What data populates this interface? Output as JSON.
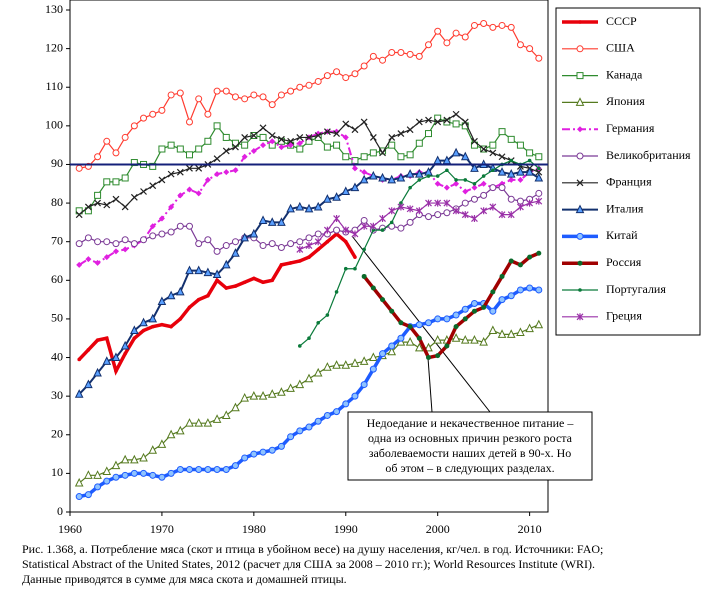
{
  "chart_data": {
    "type": "line",
    "x": [
      1961,
      1962,
      1963,
      1964,
      1965,
      1966,
      1967,
      1968,
      1969,
      1970,
      1971,
      1972,
      1973,
      1974,
      1975,
      1976,
      1977,
      1978,
      1979,
      1980,
      1981,
      1982,
      1983,
      1984,
      1985,
      1986,
      1987,
      1988,
      1989,
      1990,
      1991,
      1992,
      1993,
      1994,
      1995,
      1996,
      1997,
      1998,
      1999,
      2000,
      2001,
      2002,
      2003,
      2004,
      2005,
      2006,
      2007,
      2008,
      2009,
      2010,
      2011
    ],
    "xlim": [
      1960,
      2012
    ],
    "xticks": [
      1960,
      1970,
      1980,
      1990,
      2000,
      2010
    ],
    "ylim": [
      0,
      130
    ],
    "yticks": [
      0,
      10,
      20,
      30,
      40,
      50,
      60,
      70,
      80,
      90,
      100,
      110,
      120,
      130
    ],
    "reference_line": {
      "value": 90,
      "color": "#14207a"
    },
    "series": [
      {
        "name": "СССР",
        "color": "#e8000b",
        "width": 3.5,
        "marker": "dot",
        "values": [
          39.5,
          42,
          44.5,
          45,
          36.5,
          41,
          45,
          47,
          48,
          48.5,
          48,
          50,
          53,
          55,
          56,
          60,
          58,
          58.5,
          59.5,
          60.5,
          59.5,
          60,
          64,
          64.5,
          65,
          66,
          68,
          70,
          72,
          70,
          66,
          null,
          null,
          null,
          null,
          null,
          null,
          null,
          null,
          null,
          null,
          null,
          null,
          null,
          null,
          null,
          null,
          null,
          null,
          null,
          null
        ]
      },
      {
        "name": "США",
        "color": "#ff3b2f",
        "width": 1.2,
        "marker": "circle",
        "values": [
          89,
          89.5,
          92,
          96,
          93,
          97,
          100,
          102,
          103,
          104,
          108,
          108.5,
          101,
          107,
          103,
          109,
          109,
          107.5,
          107,
          108,
          107.5,
          105.5,
          108,
          109,
          110,
          110.5,
          111.5,
          113,
          114,
          112.5,
          113.5,
          115.5,
          118,
          117,
          119,
          119,
          118.5,
          118,
          121,
          124.5,
          121.5,
          124,
          123,
          126,
          126.5,
          125.5,
          126,
          125.5,
          121,
          120,
          117.5
        ]
      },
      {
        "name": "Канада",
        "color": "#2e8b2e",
        "width": 1.2,
        "marker": "square",
        "values": [
          78,
          78,
          82,
          85.5,
          85.5,
          86.5,
          90.5,
          90,
          89.5,
          94,
          95,
          94,
          92.5,
          94,
          96,
          100,
          97,
          95.5,
          95,
          97.5,
          97,
          95,
          96,
          95,
          94,
          96,
          97,
          94.5,
          95,
          92,
          91,
          92,
          93,
          93.5,
          95,
          92,
          92.5,
          95.5,
          98,
          102,
          101,
          100.5,
          100,
          95,
          94,
          95,
          98.5,
          96.5,
          95,
          93,
          92
        ]
      },
      {
        "name": "Япония",
        "color": "#557a1f",
        "width": 1.2,
        "marker": "triangle",
        "values": [
          7.5,
          9.5,
          9.5,
          10.5,
          12,
          13.5,
          13.5,
          14,
          16,
          17.5,
          20,
          21,
          23,
          23,
          23,
          24,
          25,
          27,
          29.5,
          30,
          30,
          30.5,
          31,
          32,
          33,
          34.5,
          36,
          37.5,
          38,
          38,
          38.5,
          39,
          40,
          40.5,
          41.5,
          44,
          44,
          42.5,
          42.5,
          44.5,
          44.5,
          45,
          44.5,
          44.5,
          44,
          47,
          46,
          46,
          46.5,
          47.5,
          48.5
        ]
      },
      {
        "name": "Германия",
        "color": "#e020e0",
        "width": 2,
        "marker": "diamond",
        "dash": "8 3 2 3",
        "values": [
          64,
          65.5,
          64.5,
          66,
          67.5,
          68,
          69,
          70.5,
          74,
          76,
          79,
          82,
          83.5,
          82.5,
          86,
          87.5,
          88,
          88.5,
          92,
          93.5,
          95,
          96,
          94.5,
          95,
          95.5,
          97,
          98,
          98.5,
          98.5,
          97,
          89,
          88,
          87,
          86,
          86,
          87,
          87,
          88,
          88,
          85,
          84,
          85,
          83,
          84,
          85,
          84,
          85,
          86,
          86,
          88,
          89
        ]
      },
      {
        "name": "Великобритания",
        "color": "#7b3a96",
        "width": 1.2,
        "marker": "circle",
        "values": [
          69.5,
          71,
          70,
          70,
          69.5,
          70.5,
          69.5,
          70.5,
          71.5,
          72,
          72.5,
          74,
          74,
          69.5,
          70.5,
          67.5,
          69,
          70,
          71,
          71,
          69,
          69.5,
          68.5,
          69.5,
          70,
          71,
          72,
          72,
          73,
          72.5,
          73,
          75.5,
          73,
          73.5,
          74,
          73.5,
          75,
          77,
          76.5,
          77,
          77.5,
          78.5,
          80,
          81,
          82,
          84,
          84,
          81,
          80.5,
          81,
          82.5
        ]
      },
      {
        "name": "Франция",
        "color": "#222222",
        "width": 1.2,
        "marker": "x",
        "values": [
          77,
          79,
          80,
          79.5,
          81,
          79,
          81.5,
          83,
          84.5,
          86,
          87.5,
          88,
          89,
          89,
          90,
          91.5,
          93.5,
          94.5,
          97,
          97.5,
          99.5,
          97.5,
          96.5,
          96,
          97,
          97,
          97.5,
          98.5,
          98,
          100.5,
          99,
          101,
          97,
          93,
          97,
          98,
          99,
          101,
          101.5,
          101,
          101.5,
          103,
          101,
          96,
          94,
          93,
          92,
          91,
          89.5,
          89,
          88
        ]
      },
      {
        "name": "Италия",
        "color": "#13306e",
        "width": 2,
        "marker": "triangle-filled",
        "values": [
          30.5,
          33,
          36,
          39,
          40,
          43,
          47,
          49,
          50,
          54.5,
          56,
          57,
          62.5,
          62.5,
          62,
          61.5,
          64,
          67,
          71,
          72,
          75.5,
          75,
          75,
          78.5,
          79,
          78.5,
          79,
          81,
          81.5,
          83,
          84,
          86,
          87,
          86.5,
          86,
          86.5,
          87.5,
          87.5,
          88,
          91,
          91,
          93,
          92,
          89,
          90,
          89,
          88,
          87.5,
          88,
          88,
          86.5
        ]
      },
      {
        "name": "Китай",
        "color": "#1e5cff",
        "width": 3.5,
        "marker": "circle-blue",
        "values": [
          4,
          4.5,
          6.5,
          8,
          9,
          9.5,
          10,
          10,
          9.5,
          9,
          10,
          11,
          11,
          11,
          11,
          11,
          11,
          12,
          14,
          15,
          15.5,
          16,
          17,
          19.5,
          21,
          22,
          23.5,
          25,
          26,
          28,
          30,
          33,
          37,
          41,
          43,
          45,
          48,
          48.5,
          49,
          50,
          50,
          51,
          52.5,
          54,
          54,
          52,
          55,
          56,
          57.5,
          58,
          57.5
        ]
      },
      {
        "name": "Россия",
        "color": "#a00000",
        "width": 3.5,
        "marker": "dot-green",
        "values": [
          null,
          null,
          null,
          null,
          null,
          null,
          null,
          null,
          null,
          null,
          null,
          null,
          null,
          null,
          null,
          null,
          null,
          null,
          null,
          null,
          null,
          null,
          null,
          null,
          null,
          null,
          null,
          null,
          null,
          null,
          null,
          61,
          58,
          55,
          52,
          49,
          48,
          45,
          40,
          40.5,
          43,
          48,
          50,
          52,
          53,
          57,
          61,
          65,
          64,
          66,
          67
        ]
      },
      {
        "name": "Португалия",
        "color": "#0a7a3a",
        "width": 1.2,
        "marker": "dot",
        "values": [
          null,
          null,
          null,
          null,
          null,
          null,
          null,
          null,
          null,
          null,
          null,
          null,
          null,
          null,
          null,
          null,
          null,
          null,
          null,
          null,
          null,
          null,
          null,
          null,
          43,
          45,
          49,
          51,
          57,
          63,
          63,
          68,
          73,
          73,
          75,
          80,
          84,
          86,
          87,
          87,
          88.5,
          86,
          86,
          85,
          87,
          88.5,
          90,
          91,
          90,
          91,
          89
        ]
      },
      {
        "name": "Греция",
        "color": "#9a30a8",
        "width": 1.2,
        "marker": "star",
        "values": [
          null,
          null,
          null,
          null,
          null,
          null,
          null,
          null,
          null,
          null,
          null,
          null,
          null,
          null,
          null,
          null,
          null,
          null,
          null,
          null,
          null,
          null,
          null,
          null,
          68,
          69,
          70,
          73,
          76,
          73,
          72,
          74,
          74,
          76,
          78,
          79,
          78.5,
          78,
          80,
          80,
          80,
          78,
          77,
          76,
          78,
          79,
          77,
          77,
          79,
          80,
          80.5
        ]
      }
    ],
    "annotation": [
      "Недоедание и некачественное питание –",
      "одна из основных причин  резкого роста",
      "заболеваемости наших детей в   90-х. Но",
      "об этом – в следующих разделах."
    ],
    "caption": [
      "Рис.   1.368, а. Потребление мяса (скот и птица в убойном весе) на душу населения, кг/чел. в год. Источники: FAO;",
      "Statistical Abstract of the United States, 2012 (расчет для США за 2008 – 2010 гг.); World Resources Institute (WRI).",
      "Данные приводятся в сумме для мяса скота и домашней птицы."
    ]
  }
}
